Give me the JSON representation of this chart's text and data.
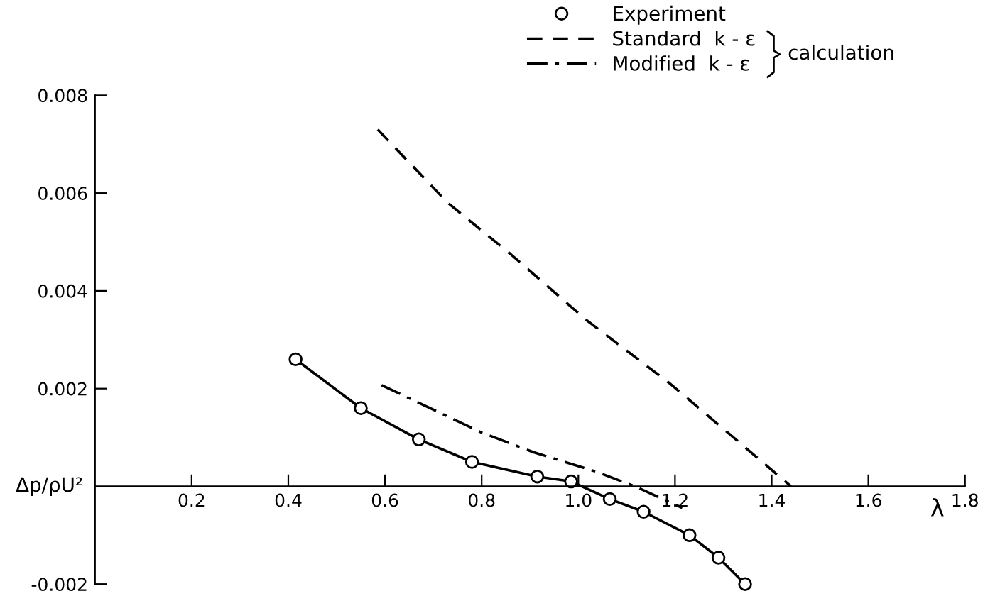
{
  "chart_data": {
    "type": "line",
    "xlabel": "λ",
    "ylabel": "Δp/ρU²",
    "xlim": [
      0,
      1.8
    ],
    "ylim": [
      -0.002,
      0.008
    ],
    "xticks": [
      0.2,
      0.4,
      0.6,
      0.8,
      {
        "value": 1,
        "label": "1.0"
      },
      1.2,
      1.4,
      1.6,
      1.8
    ],
    "yticks": [
      -0.002,
      0.002,
      0.004,
      0.006,
      0.008
    ],
    "grid": false,
    "legend": "top right",
    "annotations": [
      "calculation"
    ],
    "series": [
      {
        "name": "Experiment",
        "color": "#000000",
        "marker": "circle",
        "line_style": "solid",
        "x": [
          0.415,
          0.55,
          0.67,
          0.78,
          0.915,
          0.985,
          1.065,
          1.135,
          1.23,
          1.29,
          1.345
        ],
        "values": [
          0.0026,
          0.0016,
          0.00096,
          0.0005,
          0.0002,
          0.0001,
          -0.00026,
          -0.00052,
          -0.001,
          -0.00146,
          -0.002
        ]
      },
      {
        "name": "Standard  k - ε",
        "color": "#000000",
        "marker": "none",
        "line_style": "dashed",
        "x": [
          0.585,
          0.73,
          0.86,
          1.017,
          1.19,
          1.44
        ],
        "values": [
          0.0073,
          0.0058,
          0.00475,
          0.0034,
          0.0021,
          0.0
        ]
      },
      {
        "name": "Modified  k - ε",
        "color": "#000000",
        "marker": "none",
        "line_style": "dashdot",
        "x": [
          0.593,
          0.8,
          0.907,
          1.037,
          1.117,
          1.215
        ],
        "values": [
          0.00207,
          0.0011,
          0.0007,
          0.0003,
          0.0,
          -0.00044
        ]
      }
    ]
  }
}
